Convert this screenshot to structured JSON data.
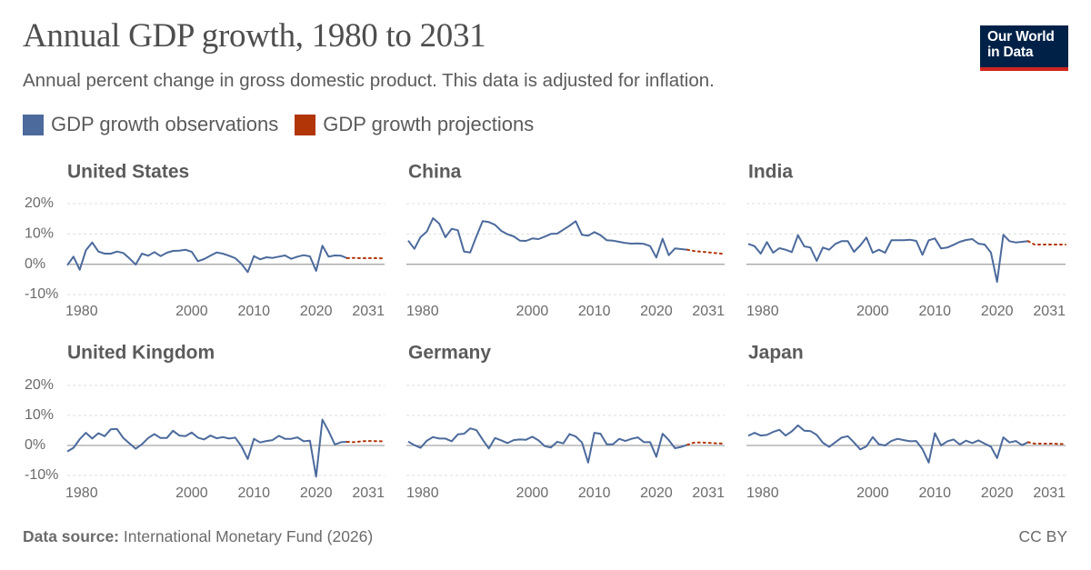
{
  "header": {
    "title": "Annual GDP growth, 1980 to 2031",
    "subtitle": "Annual percent change in gross domestic product. This data is adjusted for inflation."
  },
  "logo": {
    "line1": "Our World",
    "line2": "in Data"
  },
  "legend": [
    {
      "label": "GDP growth observations",
      "color": "#4c6a9c"
    },
    {
      "label": "GDP growth projections",
      "color": "#b13507"
    }
  ],
  "footer": {
    "source_label": "Data source:",
    "source_text": "International Monetary Fund (2026)",
    "license": "CC BY"
  },
  "chart_data": {
    "type": "line",
    "layout": "small-multiples",
    "y_tick_labels": [
      "20%",
      "10%",
      "0%",
      "-10%"
    ],
    "y_ticks": [
      20,
      10,
      0,
      -10
    ],
    "ylim": [
      -10,
      20
    ],
    "xlim": [
      1980,
      2031
    ],
    "x_ticks": [
      1980,
      2000,
      2010,
      2020,
      2031
    ],
    "series_styles": {
      "observations": {
        "color": "#4c6a9c",
        "style": "solid"
      },
      "projections": {
        "color": "#b13507",
        "style": "dotted"
      }
    },
    "panels": [
      {
        "name": "United States",
        "observations": {
          "years": [
            1980,
            1981,
            1982,
            1983,
            1984,
            1985,
            1986,
            1987,
            1988,
            1989,
            1990,
            1991,
            1992,
            1993,
            1994,
            1995,
            1996,
            1997,
            1998,
            1999,
            2000,
            2001,
            2002,
            2003,
            2004,
            2005,
            2006,
            2007,
            2008,
            2009,
            2010,
            2011,
            2012,
            2013,
            2014,
            2015,
            2016,
            2017,
            2018,
            2019,
            2020,
            2021,
            2022,
            2023,
            2024,
            2025
          ],
          "values": [
            -0.3,
            2.5,
            -1.8,
            4.6,
            7.2,
            4.2,
            3.5,
            3.5,
            4.2,
            3.7,
            1.9,
            -0.1,
            3.5,
            2.8,
            4.0,
            2.7,
            3.8,
            4.4,
            4.5,
            4.8,
            4.1,
            1.0,
            1.7,
            2.8,
            3.9,
            3.5,
            2.8,
            2.0,
            0.1,
            -2.6,
            2.7,
            1.6,
            2.3,
            2.1,
            2.5,
            2.9,
            1.8,
            2.5,
            3.0,
            2.6,
            -2.2,
            6.1,
            2.5,
            2.9,
            2.8,
            2.0
          ]
        },
        "projections": {
          "years": [
            2025,
            2026,
            2027,
            2028,
            2029,
            2030,
            2031
          ],
          "values": [
            2.0,
            2.1,
            2.0,
            2.0,
            2.0,
            2.0,
            1.9
          ]
        }
      },
      {
        "name": "China",
        "observations": {
          "years": [
            1980,
            1981,
            1982,
            1983,
            1984,
            1985,
            1986,
            1987,
            1988,
            1989,
            1990,
            1991,
            1992,
            1993,
            1994,
            1995,
            1996,
            1997,
            1998,
            1999,
            2000,
            2001,
            2002,
            2003,
            2004,
            2005,
            2006,
            2007,
            2008,
            2009,
            2010,
            2011,
            2012,
            2013,
            2014,
            2015,
            2016,
            2017,
            2018,
            2019,
            2020,
            2021,
            2022,
            2023,
            2024,
            2025
          ],
          "values": [
            7.8,
            5.1,
            9.0,
            10.8,
            15.2,
            13.4,
            8.9,
            11.7,
            11.2,
            4.2,
            3.9,
            9.3,
            14.2,
            13.9,
            13.0,
            11.0,
            9.9,
            9.2,
            7.8,
            7.7,
            8.5,
            8.3,
            9.1,
            10.0,
            10.1,
            11.4,
            12.7,
            14.2,
            9.7,
            9.4,
            10.6,
            9.6,
            7.9,
            7.8,
            7.4,
            7.0,
            6.8,
            6.9,
            6.7,
            6.0,
            2.2,
            8.4,
            3.0,
            5.2,
            5.0,
            4.8
          ]
        },
        "projections": {
          "years": [
            2025,
            2026,
            2027,
            2028,
            2029,
            2030,
            2031
          ],
          "values": [
            4.8,
            4.4,
            4.2,
            4.0,
            3.8,
            3.6,
            3.4
          ]
        }
      },
      {
        "name": "India",
        "observations": {
          "years": [
            1980,
            1981,
            1982,
            1983,
            1984,
            1985,
            1986,
            1987,
            1988,
            1989,
            1990,
            1991,
            1992,
            1993,
            1994,
            1995,
            1996,
            1997,
            1998,
            1999,
            2000,
            2001,
            2002,
            2003,
            2004,
            2005,
            2006,
            2007,
            2008,
            2009,
            2010,
            2011,
            2012,
            2013,
            2014,
            2015,
            2016,
            2017,
            2018,
            2019,
            2020,
            2021,
            2022,
            2023,
            2024,
            2025
          ],
          "values": [
            6.7,
            6.0,
            3.5,
            7.3,
            3.8,
            5.3,
            4.8,
            4.0,
            9.6,
            5.9,
            5.5,
            1.1,
            5.5,
            4.8,
            6.7,
            7.6,
            7.6,
            4.1,
            6.2,
            8.8,
            3.8,
            4.8,
            3.8,
            7.9,
            7.9,
            7.9,
            8.1,
            7.7,
            3.1,
            7.9,
            8.5,
            5.2,
            5.5,
            6.4,
            7.4,
            8.0,
            8.3,
            6.8,
            6.5,
            3.9,
            -5.8,
            9.7,
            7.6,
            7.2,
            7.4,
            7.6
          ]
        },
        "projections": {
          "years": [
            2025,
            2026,
            2027,
            2028,
            2029,
            2030,
            2031
          ],
          "values": [
            7.6,
            6.5,
            6.5,
            6.5,
            6.5,
            6.5,
            6.5
          ]
        }
      },
      {
        "name": "United Kingdom",
        "observations": {
          "years": [
            1980,
            1981,
            1982,
            1983,
            1984,
            1985,
            1986,
            1987,
            1988,
            1989,
            1990,
            1991,
            1992,
            1993,
            1994,
            1995,
            1996,
            1997,
            1998,
            1999,
            2000,
            2001,
            2002,
            2003,
            2004,
            2005,
            2006,
            2007,
            2008,
            2009,
            2010,
            2011,
            2012,
            2013,
            2014,
            2015,
            2016,
            2017,
            2018,
            2019,
            2020,
            2021,
            2022,
            2023,
            2024,
            2025
          ],
          "values": [
            -2.0,
            -0.8,
            2.1,
            4.2,
            2.3,
            4.1,
            3.1,
            5.4,
            5.5,
            2.5,
            0.7,
            -1.1,
            0.4,
            2.5,
            3.8,
            2.5,
            2.5,
            4.9,
            3.3,
            3.1,
            4.3,
            2.6,
            2.0,
            3.3,
            2.4,
            2.8,
            2.3,
            2.6,
            -0.3,
            -4.5,
            2.2,
            1.0,
            1.5,
            1.8,
            3.2,
            2.2,
            2.2,
            2.7,
            1.4,
            1.6,
            -10.4,
            8.6,
            4.8,
            0.3,
            1.1,
            1.2
          ]
        },
        "projections": {
          "years": [
            2025,
            2026,
            2027,
            2028,
            2029,
            2030,
            2031
          ],
          "values": [
            1.2,
            1.1,
            1.3,
            1.5,
            1.5,
            1.4,
            1.4
          ]
        }
      },
      {
        "name": "Germany",
        "observations": {
          "years": [
            1980,
            1981,
            1982,
            1983,
            1984,
            1985,
            1986,
            1987,
            1988,
            1989,
            1990,
            1991,
            1992,
            1993,
            1994,
            1995,
            1996,
            1997,
            1998,
            1999,
            2000,
            2001,
            2002,
            2003,
            2004,
            2005,
            2006,
            2007,
            2008,
            2009,
            2010,
            2011,
            2012,
            2013,
            2014,
            2015,
            2016,
            2017,
            2018,
            2019,
            2020,
            2021,
            2022,
            2023,
            2024,
            2025
          ],
          "values": [
            1.3,
            0.1,
            -0.8,
            1.6,
            2.8,
            2.3,
            2.3,
            1.4,
            3.7,
            3.9,
            5.7,
            5.1,
            1.9,
            -1.0,
            2.5,
            1.7,
            0.8,
            1.8,
            2.0,
            1.9,
            2.9,
            1.7,
            -0.2,
            -0.7,
            1.2,
            0.7,
            3.8,
            3.0,
            1.0,
            -5.7,
            4.2,
            3.9,
            0.4,
            0.4,
            2.2,
            1.5,
            2.2,
            2.7,
            1.1,
            1.1,
            -3.8,
            3.9,
            1.8,
            -0.9,
            -0.5,
            0.2
          ]
        },
        "projections": {
          "years": [
            2025,
            2026,
            2027,
            2028,
            2029,
            2030,
            2031
          ],
          "values": [
            0.2,
            0.9,
            1.0,
            0.9,
            0.8,
            0.7,
            0.6
          ]
        }
      },
      {
        "name": "Japan",
        "observations": {
          "years": [
            1980,
            1981,
            1982,
            1983,
            1984,
            1985,
            1986,
            1987,
            1988,
            1989,
            1990,
            1991,
            1992,
            1993,
            1994,
            1995,
            1996,
            1997,
            1998,
            1999,
            2000,
            2001,
            2002,
            2003,
            2004,
            2005,
            2006,
            2007,
            2008,
            2009,
            2010,
            2011,
            2012,
            2013,
            2014,
            2015,
            2016,
            2017,
            2018,
            2019,
            2020,
            2021,
            2022,
            2023,
            2024,
            2025
          ],
          "values": [
            3.2,
            4.2,
            3.3,
            3.5,
            4.5,
            5.2,
            3.3,
            4.7,
            6.7,
            4.9,
            4.8,
            3.5,
            0.9,
            -0.5,
            1.1,
            2.6,
            3.1,
            1.0,
            -1.3,
            -0.3,
            2.8,
            0.4,
            0.0,
            1.5,
            2.2,
            1.8,
            1.4,
            1.5,
            -1.2,
            -5.7,
            4.1,
            0.0,
            1.4,
            2.0,
            0.3,
            1.6,
            0.8,
            1.7,
            0.6,
            -0.4,
            -4.2,
            2.7,
            1.0,
            1.5,
            0.1,
            1.1
          ]
        },
        "projections": {
          "years": [
            2025,
            2026,
            2027,
            2028,
            2029,
            2030,
            2031
          ],
          "values": [
            1.1,
            0.6,
            0.6,
            0.6,
            0.6,
            0.5,
            0.5
          ]
        }
      }
    ]
  }
}
